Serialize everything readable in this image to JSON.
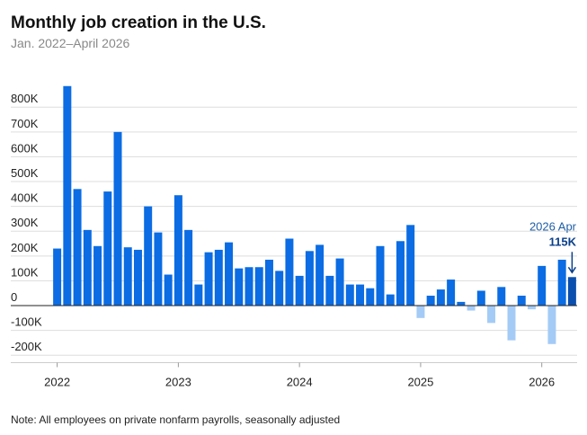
{
  "chart_data": {
    "type": "bar",
    "title": "Monthly job creation in the U.S.",
    "subtitle": "Jan. 2022–April 2026",
    "note": "Note: All employees on private nonfarm payrolls, seasonally adjusted",
    "annotation": "2026 Apr",
    "categories": [
      "2022",
      null,
      null,
      null,
      null,
      null,
      null,
      null,
      null,
      null,
      null,
      null,
      "2023",
      null,
      null,
      null,
      null,
      null,
      null,
      null,
      null,
      null,
      null,
      null,
      "2024",
      null,
      null,
      null,
      null,
      null,
      null,
      null,
      null,
      null,
      null,
      null,
      "2025",
      null,
      null,
      null,
      null,
      null,
      null,
      null,
      null,
      null,
      null,
      null,
      "2026",
      null,
      null,
      null
    ],
    "values": [
      230,
      885,
      470,
      305,
      240,
      460,
      700,
      235,
      225,
      400,
      295,
      125,
      445,
      305,
      85,
      215,
      225,
      255,
      150,
      155,
      155,
      185,
      140,
      270,
      120,
      220,
      245,
      120,
      190,
      85,
      85,
      70,
      240,
      45,
      260,
      325,
      -50,
      40,
      65,
      105,
      15,
      -20,
      60,
      -70,
      75,
      -140,
      40,
      -15,
      160,
      -155,
      185,
      115
    ],
    "value_labels": [
      null,
      null,
      null,
      null,
      null,
      null,
      null,
      null,
      null,
      null,
      null,
      null,
      null,
      null,
      null,
      null,
      null,
      null,
      null,
      null,
      null,
      null,
      null,
      null,
      null,
      null,
      null,
      null,
      null,
      null,
      null,
      null,
      null,
      null,
      null,
      null,
      null,
      null,
      null,
      null,
      null,
      null,
      null,
      null,
      null,
      null,
      null,
      null,
      null,
      null,
      null,
      "115K"
    ],
    "color": "#0b6ce3",
    "negative_color": "#a4cbf6",
    "highlight_color": "#0a4fae",
    "ylim": [
      -230,
      890
    ],
    "yticks": [
      {
        "value": -200,
        "label": "-200K"
      },
      {
        "value": -100,
        "label": "-100K"
      },
      0,
      {
        "value": 100,
        "label": "100K"
      },
      {
        "value": 200,
        "label": "200K"
      },
      {
        "value": 300,
        "label": "300K"
      },
      {
        "value": 400,
        "label": "400K"
      },
      {
        "value": 500,
        "label": "500K"
      },
      {
        "value": 600,
        "label": "600K"
      },
      {
        "value": 700,
        "label": "700K"
      },
      {
        "value": 800,
        "label": "800K"
      }
    ],
    "grid": true
  }
}
